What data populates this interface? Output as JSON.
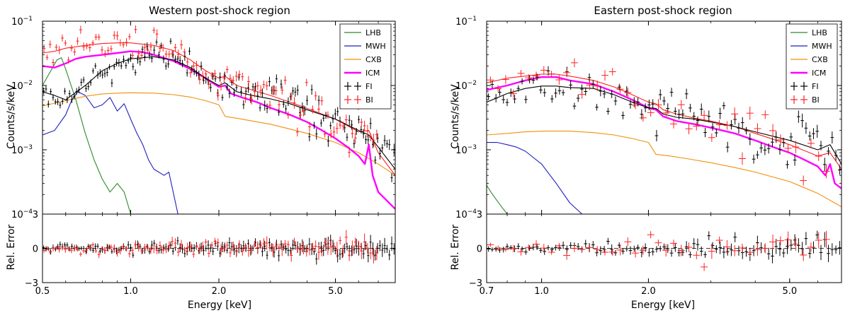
{
  "chart_data": [
    {
      "type": "line",
      "title": "Western post-shock region",
      "xlabel": "Energy [keV]",
      "ylabel": "Counts/s/keV",
      "residual_ylabel": "Rel. Error",
      "x_scale": "log",
      "y_scale": "log",
      "xlim": [
        0.5,
        8.0
      ],
      "ylim": [
        0.0001,
        0.1
      ],
      "residual_ylim": [
        -3,
        3
      ],
      "x_ticks": [
        {
          "v": 0.5,
          "label": "0.5"
        },
        {
          "v": 1.0,
          "label": "1.0"
        },
        {
          "v": 2.0,
          "label": "2.0"
        },
        {
          "v": 5.0,
          "label": "5.0"
        }
      ],
      "y_ticks": [
        {
          "exp": -4,
          "label": "10",
          "sup": "−4"
        },
        {
          "exp": -3,
          "label": "10",
          "sup": "−3"
        },
        {
          "exp": -2,
          "label": "10",
          "sup": "−2"
        },
        {
          "exp": -1,
          "label": "10",
          "sup": "−1"
        }
      ],
      "residual_ticks": [
        {
          "v": 3,
          "label": "3"
        },
        {
          "v": 0,
          "label": "0"
        },
        {
          "v": -3,
          "label": "−3"
        }
      ],
      "legend": [
        {
          "name": "LHB",
          "color": "#2e8b2e",
          "style": "line"
        },
        {
          "name": "MWH",
          "color": "#1f1fbf",
          "style": "line"
        },
        {
          "name": "CXB",
          "color": "#f0900a",
          "style": "line"
        },
        {
          "name": "ICM",
          "color": "#ff00ff",
          "style": "thick"
        },
        {
          "name": "FI",
          "color": "#000000",
          "style": "cross"
        },
        {
          "name": "BI",
          "color": "#ff2020",
          "style": "cross"
        }
      ],
      "series": [
        {
          "name": "LHB",
          "color": "#2e8b2e",
          "x": [
            0.5,
            0.53,
            0.56,
            0.58,
            0.6,
            0.65,
            0.7,
            0.75,
            0.8,
            0.85,
            0.9,
            0.95,
            1.0
          ],
          "y": [
            0.01,
            0.016,
            0.025,
            0.027,
            0.018,
            0.006,
            0.0018,
            0.0007,
            0.00035,
            0.00022,
            0.0003,
            0.00022,
            0.0001
          ]
        },
        {
          "name": "MWH",
          "color": "#1f1fbf",
          "x": [
            0.5,
            0.55,
            0.6,
            0.63,
            0.66,
            0.7,
            0.75,
            0.8,
            0.85,
            0.9,
            0.95,
            1.0,
            1.05,
            1.1,
            1.15,
            1.2,
            1.3,
            1.35,
            1.45
          ],
          "y": [
            0.0017,
            0.002,
            0.0035,
            0.006,
            0.008,
            0.007,
            0.0045,
            0.005,
            0.0065,
            0.004,
            0.0052,
            0.003,
            0.0018,
            0.0012,
            0.0007,
            0.0005,
            0.0004,
            0.00045,
            0.0001
          ]
        },
        {
          "name": "CXB",
          "color": "#f0900a",
          "x": [
            0.5,
            0.6,
            0.7,
            0.8,
            0.9,
            1.0,
            1.2,
            1.4,
            1.6,
            1.8,
            2.0,
            2.1,
            2.3,
            2.6,
            3.0,
            3.5,
            4.0,
            5.0,
            6.0,
            7.0,
            8.0
          ],
          "y": [
            0.0048,
            0.0058,
            0.0068,
            0.0074,
            0.0076,
            0.0077,
            0.0076,
            0.0072,
            0.0066,
            0.0058,
            0.005,
            0.0033,
            0.0031,
            0.0028,
            0.0025,
            0.0021,
            0.0018,
            0.0013,
            0.0009,
            0.0006,
            0.0004
          ]
        },
        {
          "name": "ICM",
          "color": "#ff00ff",
          "width": 2.4,
          "x": [
            0.5,
            0.55,
            0.6,
            0.65,
            0.7,
            0.8,
            0.9,
            1.0,
            1.1,
            1.2,
            1.4,
            1.6,
            1.8,
            2.0,
            2.1,
            2.2,
            2.4,
            2.7,
            3.0,
            3.5,
            4.0,
            4.5,
            5.0,
            5.5,
            6.0,
            6.3,
            6.5,
            6.7,
            7.0,
            8.0
          ],
          "y": [
            0.02,
            0.019,
            0.022,
            0.026,
            0.028,
            0.03,
            0.032,
            0.034,
            0.033,
            0.03,
            0.024,
            0.018,
            0.013,
            0.0095,
            0.01,
            0.0075,
            0.0065,
            0.0055,
            0.0045,
            0.0035,
            0.0027,
            0.002,
            0.0015,
            0.0011,
            0.0008,
            0.0006,
            0.0012,
            0.0004,
            0.00022,
            0.00012
          ]
        },
        {
          "name": "BI model",
          "color": "#ff2020",
          "x": [
            0.5,
            0.55,
            0.6,
            0.7,
            0.8,
            0.9,
            1.0,
            1.2,
            1.4,
            1.6,
            1.8,
            2.0,
            2.1,
            2.3,
            2.6,
            3.0,
            3.5,
            4.0,
            5.0,
            6.0,
            6.5,
            7.0,
            8.0
          ],
          "y": [
            0.032,
            0.034,
            0.038,
            0.042,
            0.045,
            0.046,
            0.046,
            0.042,
            0.035,
            0.025,
            0.017,
            0.013,
            0.014,
            0.01,
            0.0085,
            0.007,
            0.0055,
            0.0044,
            0.003,
            0.0019,
            0.002,
            0.0009,
            0.0004
          ]
        },
        {
          "name": "FI model",
          "color": "#000000",
          "x": [
            0.5,
            0.55,
            0.6,
            0.7,
            0.8,
            0.9,
            1.0,
            1.2,
            1.4,
            1.6,
            1.8,
            2.0,
            2.1,
            2.3,
            2.6,
            3.0,
            3.5,
            4.0,
            5.0,
            6.0,
            6.5,
            7.0,
            8.0
          ],
          "y": [
            0.008,
            0.007,
            0.006,
            0.01,
            0.017,
            0.022,
            0.026,
            0.028,
            0.025,
            0.019,
            0.013,
            0.01,
            0.011,
            0.008,
            0.007,
            0.0062,
            0.0052,
            0.0042,
            0.003,
            0.002,
            0.0017,
            0.0011,
            0.0005
          ]
        }
      ],
      "data_points": [
        {
          "name": "FI",
          "color": "#000000",
          "x_range": [
            0.5,
            8.0
          ],
          "n": 150,
          "follows": "FI model",
          "scatter": 0.15,
          "res_scatter": 0.22
        },
        {
          "name": "BI",
          "color": "#ff2020",
          "x_range": [
            0.5,
            7.0
          ],
          "n": 110,
          "follows": "BI model",
          "scatter": 0.17,
          "res_scatter": 0.25
        }
      ]
    },
    {
      "type": "line",
      "title": "Eastern post-shock region",
      "xlabel": "Energy [keV]",
      "ylabel": "Counts/s/keV",
      "residual_ylabel": "Rel. Error",
      "x_scale": "log",
      "y_scale": "log",
      "xlim": [
        0.7,
        7.0
      ],
      "ylim": [
        0.0001,
        0.1
      ],
      "residual_ylim": [
        -3,
        3
      ],
      "x_ticks": [
        {
          "v": 0.7,
          "label": "0.7"
        },
        {
          "v": 1.0,
          "label": "1.0"
        },
        {
          "v": 2.0,
          "label": "2.0"
        },
        {
          "v": 5.0,
          "label": "5.0"
        }
      ],
      "y_ticks": [
        {
          "exp": -4,
          "label": "10",
          "sup": "−4"
        },
        {
          "exp": -3,
          "label": "10",
          "sup": "−3"
        },
        {
          "exp": -2,
          "label": "10",
          "sup": "−2"
        },
        {
          "exp": -1,
          "label": "10",
          "sup": "−1"
        }
      ],
      "residual_ticks": [
        {
          "v": 3,
          "label": "3"
        },
        {
          "v": 0,
          "label": "0"
        },
        {
          "v": -3,
          "label": "−3"
        }
      ],
      "legend": [
        {
          "name": "LHB",
          "color": "#2e8b2e",
          "style": "line"
        },
        {
          "name": "MWH",
          "color": "#1f1fbf",
          "style": "line"
        },
        {
          "name": "CXB",
          "color": "#f0900a",
          "style": "line"
        },
        {
          "name": "ICM",
          "color": "#ff00ff",
          "style": "thick"
        },
        {
          "name": "FI",
          "color": "#000000",
          "style": "cross"
        },
        {
          "name": "BI",
          "color": "#ff2020",
          "style": "cross"
        }
      ],
      "series": [
        {
          "name": "LHB",
          "color": "#2e8b2e",
          "x": [
            0.7,
            0.72,
            0.75,
            0.78,
            0.8
          ],
          "y": [
            0.00028,
            0.00022,
            0.00016,
            0.00012,
            0.0001
          ]
        },
        {
          "name": "MWH",
          "color": "#1f1fbf",
          "x": [
            0.7,
            0.75,
            0.8,
            0.85,
            0.9,
            1.0,
            1.1,
            1.2,
            1.3
          ],
          "y": [
            0.0013,
            0.0013,
            0.0012,
            0.0011,
            0.00095,
            0.0006,
            0.0003,
            0.00015,
            0.0001
          ]
        },
        {
          "name": "CXB",
          "color": "#f0900a",
          "x": [
            0.7,
            0.8,
            0.9,
            1.0,
            1.2,
            1.4,
            1.6,
            1.8,
            2.0,
            2.1,
            2.3,
            2.6,
            3.0,
            3.5,
            4.0,
            5.0,
            6.0,
            7.0
          ],
          "y": [
            0.0017,
            0.0018,
            0.0019,
            0.00195,
            0.00195,
            0.00185,
            0.0017,
            0.0015,
            0.0013,
            0.00085,
            0.0008,
            0.00072,
            0.00063,
            0.00053,
            0.00045,
            0.00032,
            0.00021,
            0.00013
          ]
        },
        {
          "name": "ICM",
          "color": "#ff00ff",
          "width": 2.4,
          "x": [
            0.7,
            0.8,
            0.9,
            1.0,
            1.1,
            1.2,
            1.4,
            1.6,
            1.8,
            2.0,
            2.1,
            2.2,
            2.4,
            2.7,
            3.0,
            3.5,
            4.0,
            4.5,
            5.0,
            5.5,
            6.0,
            6.3,
            6.5,
            6.7,
            7.0
          ],
          "y": [
            0.0085,
            0.01,
            0.012,
            0.0135,
            0.0135,
            0.012,
            0.0105,
            0.008,
            0.006,
            0.0045,
            0.0042,
            0.0033,
            0.0028,
            0.0025,
            0.0022,
            0.0018,
            0.0014,
            0.0011,
            0.0009,
            0.0007,
            0.00055,
            0.0004,
            0.0006,
            0.0003,
            0.00025
          ]
        },
        {
          "name": "BI model",
          "color": "#ff2020",
          "x": [
            0.7,
            0.8,
            0.9,
            1.0,
            1.1,
            1.2,
            1.4,
            1.6,
            1.8,
            2.0,
            2.1,
            2.2,
            2.4,
            2.7,
            3.0,
            3.5,
            4.0,
            5.0,
            6.0,
            6.5,
            7.0
          ],
          "y": [
            0.011,
            0.013,
            0.014,
            0.015,
            0.015,
            0.014,
            0.012,
            0.0095,
            0.0072,
            0.0055,
            0.0052,
            0.0042,
            0.0036,
            0.0031,
            0.0028,
            0.0023,
            0.0018,
            0.0012,
            0.0008,
            0.0009,
            0.0005
          ]
        },
        {
          "name": "FI model",
          "color": "#000000",
          "x": [
            0.7,
            0.8,
            0.9,
            1.0,
            1.1,
            1.2,
            1.4,
            1.6,
            1.8,
            2.0,
            2.1,
            2.2,
            2.4,
            2.7,
            3.0,
            3.5,
            4.0,
            5.0,
            6.0,
            6.5,
            7.0
          ],
          "y": [
            0.0055,
            0.0075,
            0.009,
            0.0098,
            0.0098,
            0.0093,
            0.009,
            0.0072,
            0.0055,
            0.0045,
            0.0044,
            0.0036,
            0.0032,
            0.003,
            0.0027,
            0.0023,
            0.0019,
            0.0014,
            0.001,
            0.0012,
            0.0006
          ]
        }
      ],
      "data_points": [
        {
          "name": "FI",
          "color": "#000000",
          "x_range": [
            0.7,
            7.0
          ],
          "n": 95,
          "follows": "FI model",
          "scatter": 0.2,
          "res_scatter": 0.25
        },
        {
          "name": "BI",
          "color": "#ff2020",
          "x_range": [
            0.7,
            6.5
          ],
          "n": 45,
          "follows": "BI model",
          "scatter": 0.2,
          "res_scatter": 0.3
        }
      ]
    }
  ]
}
